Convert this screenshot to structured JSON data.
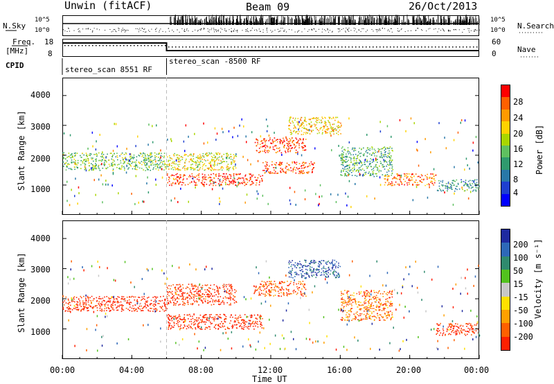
{
  "header": {
    "station": "Unwin (fitACF)",
    "beam": "Beam 09",
    "date": "26/Oct/2013"
  },
  "top_panel": {
    "left_label": "N.Sky",
    "left_ticks": [
      "10^5",
      "10^0"
    ],
    "right_label": "N.Search",
    "right_ticks": [
      "10^5",
      "10^0"
    ]
  },
  "freq_panel": {
    "left_label_1": "Freq.",
    "left_label_2": "[MHz]",
    "left_ticks": [
      "18",
      "8"
    ],
    "right_label": "Nave",
    "right_ticks": [
      "60",
      "0"
    ]
  },
  "cpid_panel": {
    "label": "CPID",
    "program_1": "stereo_scan 8551 RF",
    "program_2": "stereo_scan -8500 RF"
  },
  "axes": {
    "ylabel": "Slant Range [km]",
    "xlabel": "Time UT",
    "y_ticks": [
      "4000",
      "3000",
      "2000",
      "1000"
    ],
    "x_ticks": [
      "00:00",
      "04:00",
      "08:00",
      "12:00",
      "16:00",
      "20:00",
      "00:00"
    ]
  },
  "power_bar": {
    "label": "Power [dB]",
    "ticks": [
      "28",
      "24",
      "20",
      "16",
      "12",
      "8",
      "4"
    ],
    "colors": [
      "#ff0000",
      "#ff6000",
      "#ff9a00",
      "#ffd200",
      "#a9d600",
      "#5fc060",
      "#2f9a6e",
      "#2878a8",
      "#1e3fd0",
      "#0000ff"
    ]
  },
  "velocity_bar": {
    "label": "Velocity [m s⁻¹]",
    "ticks": [
      "200",
      "100",
      "50",
      "15",
      "-15",
      "-50",
      "-100",
      "-200"
    ],
    "colors": [
      "#1e2aa0",
      "#2d68b8",
      "#2f8a6e",
      "#52c21e",
      "#c8c8c8",
      "#ffe000",
      "#ffa000",
      "#ff6000",
      "#ff2000"
    ]
  },
  "chart_data": {
    "type": "heatmap",
    "x_range_hours": [
      0,
      24
    ],
    "y_range_km": [
      0,
      4600
    ],
    "program_change_hour": 6.0,
    "panels": [
      {
        "name": "Power",
        "unit": "dB",
        "clim": [
          0,
          30
        ],
        "echo_regions": [
          {
            "t_start": 0.0,
            "t_end": 6.0,
            "r_low": 1500,
            "r_high": 2100,
            "level": 14
          },
          {
            "t_start": 6.0,
            "t_end": 11.5,
            "r_low": 1000,
            "r_high": 1400,
            "level": 28
          },
          {
            "t_start": 11.5,
            "t_end": 14.5,
            "r_low": 1400,
            "r_high": 1800,
            "level": 26
          },
          {
            "t_start": 6.0,
            "t_end": 10.0,
            "r_low": 1500,
            "r_high": 2100,
            "level": 18
          },
          {
            "t_start": 11.0,
            "t_end": 14.0,
            "r_low": 2100,
            "r_high": 2600,
            "level": 27
          },
          {
            "t_start": 13.0,
            "t_end": 16.0,
            "r_low": 2700,
            "r_high": 3300,
            "level": 20
          },
          {
            "t_start": 16.0,
            "t_end": 19.0,
            "r_low": 1300,
            "r_high": 2300,
            "level": 12
          },
          {
            "t_start": 18.5,
            "t_end": 21.5,
            "r_low": 1000,
            "r_high": 1400,
            "level": 24
          },
          {
            "t_start": 21.5,
            "t_end": 24.0,
            "r_low": 800,
            "r_high": 1200,
            "level": 10
          }
        ]
      },
      {
        "name": "Velocity",
        "unit": "m s-1",
        "clim": [
          -200,
          200
        ],
        "echo_regions": [
          {
            "t_start": 0.0,
            "t_end": 6.0,
            "r_low": 1600,
            "r_high": 2100,
            "level": -200
          },
          {
            "t_start": 6.0,
            "t_end": 11.5,
            "r_low": 1000,
            "r_high": 1500,
            "level": -200
          },
          {
            "t_start": 6.0,
            "t_end": 10.0,
            "r_low": 1800,
            "r_high": 2500,
            "level": -180
          },
          {
            "t_start": 11.0,
            "t_end": 14.0,
            "r_low": 2100,
            "r_high": 2600,
            "level": -150
          },
          {
            "t_start": 13.0,
            "t_end": 16.0,
            "r_low": 2700,
            "r_high": 3300,
            "level": 150
          },
          {
            "t_start": 16.0,
            "t_end": 19.0,
            "r_low": 1300,
            "r_high": 2300,
            "level": -120
          },
          {
            "t_start": 21.5,
            "t_end": 24.0,
            "r_low": 800,
            "r_high": 1200,
            "level": -200
          }
        ]
      }
    ]
  }
}
